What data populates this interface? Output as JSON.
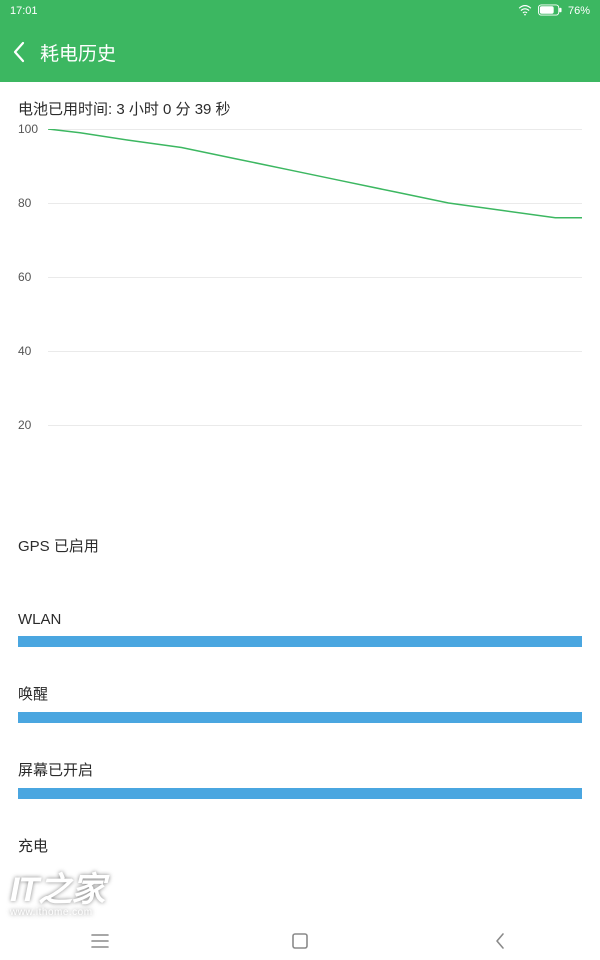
{
  "status": {
    "time": "17:01",
    "battery_pct": "76%"
  },
  "header": {
    "title": "耗电历史"
  },
  "usage_text": "电池已用时间: 3 小时 0 分 39 秒",
  "chart": {
    "type": "line",
    "ylim": [
      0,
      100
    ],
    "yticks": [
      100,
      80,
      60,
      40,
      20
    ],
    "grid_color": "#eaeaea",
    "line_color": "#3cb761",
    "line_width": 1.5,
    "background_color": "#ffffff",
    "tick_fontsize": 12,
    "tick_color": "#555555",
    "points": [
      {
        "x": 0.0,
        "y": 100
      },
      {
        "x": 0.06,
        "y": 99
      },
      {
        "x": 0.15,
        "y": 97
      },
      {
        "x": 0.25,
        "y": 95
      },
      {
        "x": 0.35,
        "y": 92
      },
      {
        "x": 0.45,
        "y": 89
      },
      {
        "x": 0.55,
        "y": 86
      },
      {
        "x": 0.65,
        "y": 83
      },
      {
        "x": 0.75,
        "y": 80
      },
      {
        "x": 0.85,
        "y": 78
      },
      {
        "x": 0.95,
        "y": 76
      },
      {
        "x": 1.0,
        "y": 76
      }
    ]
  },
  "sections": [
    {
      "label": "GPS 已启用",
      "fill_pct": 0,
      "color": "#4aa6e0"
    },
    {
      "label": "WLAN",
      "fill_pct": 100,
      "color": "#4aa6e0"
    },
    {
      "label": "唤醒",
      "fill_pct": 100,
      "color": "#4aa6e0"
    },
    {
      "label": "屏幕已开启",
      "fill_pct": 100,
      "color": "#4aa6e0"
    },
    {
      "label": "充电",
      "fill_pct": 0,
      "color": "#4aa6e0"
    }
  ],
  "palette": {
    "accent": "#3cb761",
    "bar": "#4aa6e0",
    "text": "#2b2b2b",
    "nav_icon": "#8a8a8a"
  },
  "watermark": {
    "logo": "IT之家",
    "url": "www.ithome.com"
  }
}
